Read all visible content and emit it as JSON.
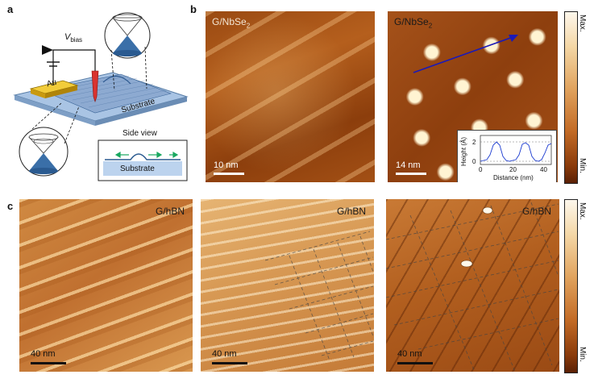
{
  "panel_letters": {
    "a": "a",
    "b": "b",
    "c": "c"
  },
  "panel_a": {
    "vbias_label": "V",
    "vbias_sub": "bias",
    "au_label": "Au",
    "substrate_label": "Substrate",
    "side_view_title": "Side view",
    "side_view_substrate": "Substrate"
  },
  "panel_b": {
    "left": {
      "label_main": "G/NbSe",
      "label_sub": "2",
      "scale": "10 nm"
    },
    "right": {
      "label_main": "G/NbSe",
      "label_sub": "2",
      "scale": "14 nm"
    },
    "inset": {
      "ylabel": "Height (Å)",
      "xlabel": "Distance (nm)",
      "yticks": [
        "0",
        "2"
      ],
      "xticks": [
        "0",
        "20",
        "40"
      ]
    },
    "colorbar": {
      "max": "Max.",
      "min": "Min."
    }
  },
  "panel_c": {
    "panels": [
      {
        "label": "G/hBN",
        "scale": "40 nm"
      },
      {
        "label": "G/hBN",
        "scale": "40 nm"
      },
      {
        "label": "G/hBN",
        "scale": "40 nm"
      }
    ],
    "colorbar": {
      "max": "Max.",
      "min": "Min."
    }
  },
  "colors": {
    "au": "#e8b820",
    "tip": "#d9332f",
    "substrate": "#a9c4e4",
    "arrow": "#1a1ab8",
    "flow_arrow": "#1aa860"
  }
}
